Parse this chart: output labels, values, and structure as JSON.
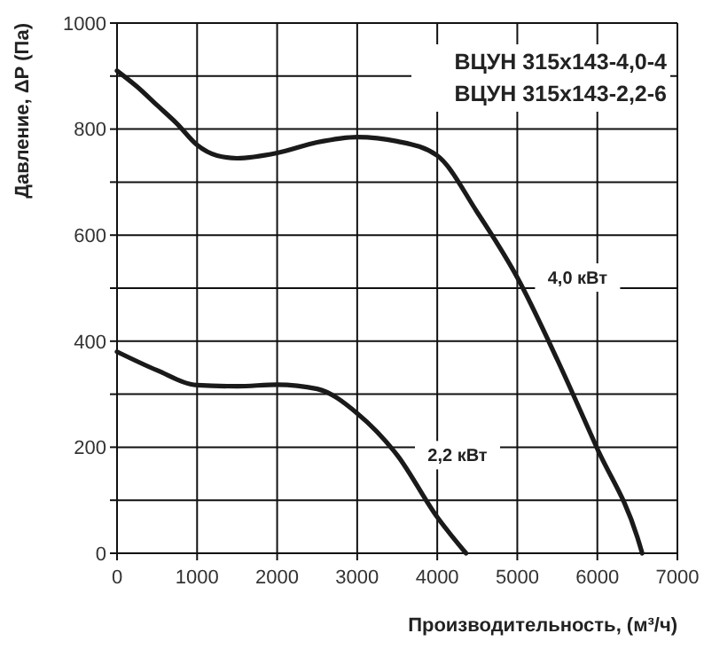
{
  "chart_data": {
    "type": "line",
    "title": "ВЦУН 315x143-4,0-4",
    "subtitle": "ВЦУН 315x143-2,2-6",
    "xlabel": "Производительность, (м³/ч)",
    "ylabel": "Давление, ΔР (Па)",
    "series": [
      {
        "name": "4,0 кВт",
        "color": "#1a1a1a",
        "x": [
          0,
          250,
          500,
          750,
          1000,
          1250,
          1500,
          2000,
          2500,
          3000,
          3500,
          4000,
          4500,
          5000,
          5500,
          6000,
          6500,
          6560
        ],
        "values": [
          910,
          880,
          845,
          810,
          770,
          750,
          745,
          755,
          775,
          785,
          777,
          750,
          643,
          520,
          365,
          197,
          30,
          0
        ]
      },
      {
        "name": "2,2 кВт",
        "color": "#1a1a1a",
        "x": [
          0,
          500,
          1000,
          1500,
          2000,
          2500,
          3000,
          3500,
          4000,
          4360
        ],
        "values": [
          380,
          345,
          317,
          315,
          318,
          310,
          264,
          185,
          68,
          0
        ]
      }
    ],
    "xlim": [
      0,
      7000
    ],
    "xticks": [
      0,
      1000,
      2000,
      3000,
      4000,
      5000,
      6000,
      7000
    ],
    "ylim": [
      0,
      1000
    ],
    "yticks": [
      0,
      {
        "value": 100,
        "label": null
      },
      200,
      {
        "value": 300,
        "label": null
      },
      400,
      {
        "value": 500,
        "label": null
      },
      600,
      {
        "value": 700,
        "label": null
      },
      800,
      {
        "value": 900,
        "label": null
      },
      1000
    ],
    "grid": true,
    "line_style": "solid",
    "marker": "none"
  }
}
